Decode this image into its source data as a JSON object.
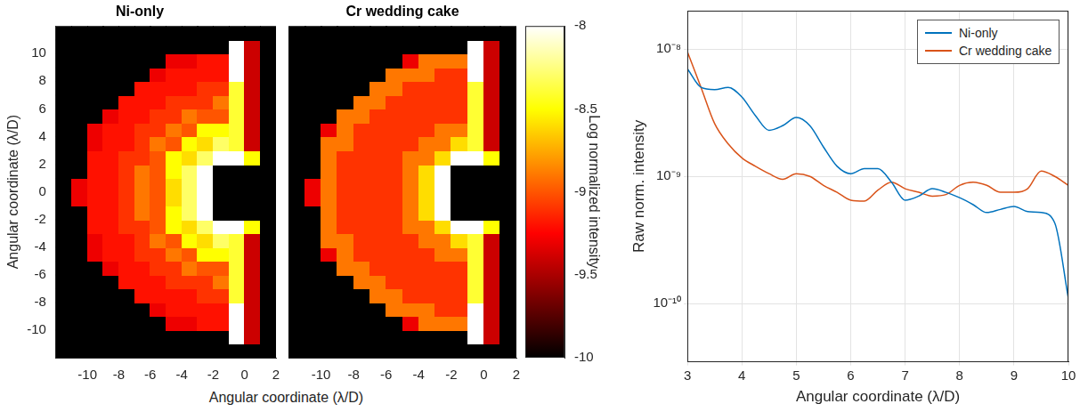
{
  "chart_data": [
    {
      "type": "heatmap",
      "title": "Ni-only",
      "xlabel": "Angular coordinate (λ/D)",
      "ylabel": "Angular coordinate (λ/D)",
      "x": [
        -11.5,
        -10.5,
        -9.5,
        -8.5,
        -7.5,
        -6.5,
        -5.5,
        -4.5,
        -3.5,
        -2.5,
        -1.5,
        -0.5,
        0.5,
        1.5
      ],
      "y": [
        -11.5,
        -10.5,
        -9.5,
        -8.5,
        -7.5,
        -6.5,
        -5.5,
        -4.5,
        -3.5,
        -2.5,
        -1.5,
        -0.5,
        0.5,
        1.5,
        2.5,
        3.5,
        4.5,
        5.5,
        6.5,
        7.5,
        8.5,
        9.5,
        10.5,
        11.5
      ],
      "z": [
        [
          -10,
          -10,
          -10,
          -10,
          -10,
          -10,
          -10,
          -10,
          -10,
          -10,
          -10,
          -10,
          -10,
          -10
        ],
        [
          -10,
          -10,
          -10,
          -10,
          -10,
          -10,
          -10,
          -10,
          -10,
          -10,
          -10,
          -8,
          -9.4,
          -10
        ],
        [
          -10,
          -10,
          -10,
          -10,
          -10,
          -10,
          -10,
          -9.3,
          -9.3,
          -9.2,
          -9.2,
          -8,
          -9.4,
          -10
        ],
        [
          -10,
          -10,
          -10,
          -10,
          -10,
          -10,
          -9.3,
          -9.2,
          -9.2,
          -9.2,
          -9.2,
          -8,
          -9.4,
          -10
        ],
        [
          -10,
          -10,
          -10,
          -10,
          -10,
          -9.2,
          -9.2,
          -9.2,
          -9.2,
          -9.1,
          -9.1,
          -8.4,
          -9.4,
          -10
        ],
        [
          -10,
          -10,
          -10,
          -10,
          -9.2,
          -9.2,
          -9.2,
          -9.1,
          -9.1,
          -9.1,
          -8.9,
          -8.4,
          -9.4,
          -10
        ],
        [
          -10,
          -10,
          -10,
          -9.3,
          -9.2,
          -9.2,
          -9.1,
          -9.1,
          -8.9,
          -9,
          -9,
          -8.4,
          -9.4,
          -10
        ],
        [
          -10,
          -10,
          -9.3,
          -9.2,
          -9.2,
          -9.1,
          -9.1,
          -8.9,
          -9,
          -8.5,
          -8.5,
          -8.4,
          -9.4,
          -10
        ],
        [
          -10,
          -10,
          -9.3,
          -9.2,
          -9.2,
          -9.1,
          -8.9,
          -9,
          -8.5,
          -8.6,
          -8.3,
          -8.4,
          -9.4,
          -10
        ],
        [
          -10,
          -10,
          -9.2,
          -9.2,
          -9.1,
          -9.1,
          -9,
          -8.5,
          -8.6,
          -8.3,
          -8,
          -8,
          -8.5,
          -10
        ],
        [
          -10,
          -10,
          -9.2,
          -9.2,
          -9.1,
          -8.9,
          -9,
          -8.5,
          -8.3,
          -8,
          -10,
          -10,
          -10,
          -10
        ],
        [
          -10,
          -9.3,
          -9.2,
          -9.2,
          -9.1,
          -8.9,
          -9,
          -8.6,
          -8.3,
          -8,
          -10,
          -10,
          -10,
          -10
        ],
        [
          -10,
          -9.3,
          -9.2,
          -9.2,
          -9.1,
          -8.9,
          -9,
          -8.6,
          -8.3,
          -8,
          -10,
          -10,
          -10,
          -10
        ],
        [
          -10,
          -10,
          -9.2,
          -9.2,
          -9.1,
          -8.9,
          -9,
          -8.5,
          -8.3,
          -8,
          -10,
          -10,
          -10,
          -10
        ],
        [
          -10,
          -10,
          -9.2,
          -9.2,
          -9.1,
          -9.1,
          -9,
          -8.5,
          -8.6,
          -8.3,
          -8,
          -8,
          -8.5,
          -10
        ],
        [
          -10,
          -10,
          -9.3,
          -9.2,
          -9.2,
          -9.1,
          -8.9,
          -9,
          -8.5,
          -8.6,
          -8.3,
          -8.4,
          -9.4,
          -10
        ],
        [
          -10,
          -10,
          -9.3,
          -9.2,
          -9.2,
          -9.1,
          -9.1,
          -8.9,
          -9,
          -8.5,
          -8.5,
          -8.4,
          -9.4,
          -10
        ],
        [
          -10,
          -10,
          -10,
          -9.3,
          -9.2,
          -9.2,
          -9.1,
          -9.1,
          -8.9,
          -9,
          -9,
          -8.4,
          -9.4,
          -10
        ],
        [
          -10,
          -10,
          -10,
          -10,
          -9.2,
          -9.2,
          -9.2,
          -9.1,
          -9.1,
          -9.1,
          -8.9,
          -8.4,
          -9.4,
          -10
        ],
        [
          -10,
          -10,
          -10,
          -10,
          -10,
          -9.2,
          -9.2,
          -9.2,
          -9.2,
          -9.1,
          -9.1,
          -8.4,
          -9.4,
          -10
        ],
        [
          -10,
          -10,
          -10,
          -10,
          -10,
          -10,
          -9.3,
          -9.2,
          -9.2,
          -9.2,
          -9.2,
          -8,
          -9.4,
          -10
        ],
        [
          -10,
          -10,
          -10,
          -10,
          -10,
          -10,
          -10,
          -9.3,
          -9.3,
          -9.2,
          -9.2,
          -8,
          -9.4,
          -10
        ],
        [
          -10,
          -10,
          -10,
          -10,
          -10,
          -10,
          -10,
          -10,
          -10,
          -10,
          -10,
          -8,
          -9.4,
          -10
        ],
        [
          -10,
          -10,
          -10,
          -10,
          -10,
          -10,
          -10,
          -10,
          -10,
          -10,
          -10,
          -10,
          -10,
          -10
        ]
      ],
      "xlim": [
        -12,
        2
      ],
      "ylim": [
        -12,
        12
      ],
      "xticks": [
        -10,
        -8,
        -6,
        -4,
        -2,
        0,
        2
      ],
      "yticks": [
        -10,
        -8,
        -6,
        -4,
        -2,
        0,
        2,
        4,
        6,
        8,
        10
      ],
      "grid": false
    },
    {
      "type": "heatmap",
      "title": "Cr wedding cake",
      "x": [
        -11.5,
        -10.5,
        -9.5,
        -8.5,
        -7.5,
        -6.5,
        -5.5,
        -4.5,
        -3.5,
        -2.5,
        -1.5,
        -0.5,
        0.5,
        1.5
      ],
      "y": [
        -11.5,
        -10.5,
        -9.5,
        -8.5,
        -7.5,
        -6.5,
        -5.5,
        -4.5,
        -3.5,
        -2.5,
        -1.5,
        -0.5,
        0.5,
        1.5,
        2.5,
        3.5,
        4.5,
        5.5,
        6.5,
        7.5,
        8.5,
        9.5,
        10.5,
        11.5
      ],
      "z": [
        [
          -10,
          -10,
          -10,
          -10,
          -10,
          -10,
          -10,
          -10,
          -10,
          -10,
          -10,
          -10,
          -10,
          -10
        ],
        [
          -10,
          -10,
          -10,
          -10,
          -10,
          -10,
          -10,
          -10,
          -10,
          -10,
          -10,
          -8,
          -9.4,
          -10
        ],
        [
          -10,
          -10,
          -10,
          -10,
          -10,
          -10,
          -10,
          -9.3,
          -8.9,
          -8.9,
          -8.9,
          -8,
          -9.4,
          -10
        ],
        [
          -10,
          -10,
          -10,
          -10,
          -10,
          -10,
          -8.9,
          -8.9,
          -8.9,
          -9.1,
          -9.1,
          -8,
          -9.4,
          -10
        ],
        [
          -10,
          -10,
          -10,
          -10,
          -10,
          -8.9,
          -8.9,
          -9.1,
          -9.1,
          -9.1,
          -9.1,
          -8.4,
          -9.4,
          -10
        ],
        [
          -10,
          -10,
          -10,
          -10,
          -8.9,
          -8.9,
          -9.1,
          -9.1,
          -9.1,
          -9.1,
          -9.1,
          -8.4,
          -9.4,
          -10
        ],
        [
          -10,
          -10,
          -10,
          -8.9,
          -8.9,
          -9.1,
          -9.1,
          -9.1,
          -9.1,
          -9.1,
          -9.1,
          -8.4,
          -9.4,
          -10
        ],
        [
          -10,
          -10,
          -9.3,
          -8.9,
          -9.1,
          -9.1,
          -9.1,
          -9.1,
          -9.1,
          -8.9,
          -8.9,
          -8.4,
          -9.4,
          -10
        ],
        [
          -10,
          -10,
          -8.9,
          -8.9,
          -9.1,
          -9.1,
          -9.1,
          -9.1,
          -8.9,
          -8.9,
          -8.6,
          -8.4,
          -9.4,
          -10
        ],
        [
          -10,
          -10,
          -8.9,
          -9.1,
          -9.1,
          -9.1,
          -9.1,
          -8.9,
          -8.9,
          -8.6,
          -8,
          -8,
          -8.5,
          -10
        ],
        [
          -10,
          -10,
          -8.9,
          -9.1,
          -9.1,
          -9.1,
          -9.1,
          -8.9,
          -8.6,
          -8,
          -10,
          -10,
          -10,
          -10
        ],
        [
          -10,
          -9.3,
          -8.9,
          -9.1,
          -9.1,
          -9.1,
          -9.1,
          -8.9,
          -8.6,
          -8,
          -10,
          -10,
          -10,
          -10
        ],
        [
          -10,
          -9.3,
          -8.9,
          -9.1,
          -9.1,
          -9.1,
          -9.1,
          -8.9,
          -8.6,
          -8,
          -10,
          -10,
          -10,
          -10
        ],
        [
          -10,
          -10,
          -8.9,
          -9.1,
          -9.1,
          -9.1,
          -9.1,
          -8.9,
          -8.6,
          -8,
          -10,
          -10,
          -10,
          -10
        ],
        [
          -10,
          -10,
          -8.9,
          -9.1,
          -9.1,
          -9.1,
          -9.1,
          -8.9,
          -8.9,
          -8.6,
          -8,
          -8,
          -8.5,
          -10
        ],
        [
          -10,
          -10,
          -8.9,
          -8.9,
          -9.1,
          -9.1,
          -9.1,
          -9.1,
          -8.9,
          -8.9,
          -8.6,
          -8.4,
          -9.4,
          -10
        ],
        [
          -10,
          -10,
          -9.3,
          -8.9,
          -9.1,
          -9.1,
          -9.1,
          -9.1,
          -9.1,
          -8.9,
          -8.9,
          -8.4,
          -9.4,
          -10
        ],
        [
          -10,
          -10,
          -10,
          -8.9,
          -8.9,
          -9.1,
          -9.1,
          -9.1,
          -9.1,
          -9.1,
          -9.1,
          -8.4,
          -9.4,
          -10
        ],
        [
          -10,
          -10,
          -10,
          -10,
          -8.9,
          -8.9,
          -9.1,
          -9.1,
          -9.1,
          -9.1,
          -9.1,
          -8.4,
          -9.4,
          -10
        ],
        [
          -10,
          -10,
          -10,
          -10,
          -10,
          -8.9,
          -8.9,
          -9.1,
          -9.1,
          -9.1,
          -9.1,
          -8.4,
          -9.4,
          -10
        ],
        [
          -10,
          -10,
          -10,
          -10,
          -10,
          -10,
          -8.9,
          -8.9,
          -8.9,
          -9.1,
          -9.1,
          -8,
          -9.4,
          -10
        ],
        [
          -10,
          -10,
          -10,
          -10,
          -10,
          -10,
          -10,
          -9.3,
          -8.9,
          -8.9,
          -8.9,
          -8,
          -9.4,
          -10
        ],
        [
          -10,
          -10,
          -10,
          -10,
          -10,
          -10,
          -10,
          -10,
          -10,
          -10,
          -10,
          -8,
          -9.4,
          -10
        ],
        [
          -10,
          -10,
          -10,
          -10,
          -10,
          -10,
          -10,
          -10,
          -10,
          -10,
          -10,
          -10,
          -10,
          -10
        ]
      ],
      "xlim": [
        -12,
        2
      ],
      "ylim": [
        -12,
        12
      ],
      "xticks": [
        -10,
        -8,
        -6,
        -4,
        -2,
        0,
        2
      ],
      "yticks": [
        -10,
        -8,
        -6,
        -4,
        -2,
        0,
        2,
        4,
        6,
        8,
        10
      ],
      "grid": false,
      "tick_labels": "x",
      "colorbar": {
        "label": "Log normalized intensity",
        "range": [
          -10,
          -8
        ],
        "ticks": [
          -10,
          -9.5,
          -9,
          -8.5,
          -8
        ]
      }
    },
    {
      "type": "line",
      "xlabel": "Angular coordinate (λ/D)",
      "ylabel": "Raw norm. intensity",
      "x": [
        3,
        3.25,
        3.5,
        3.75,
        4,
        4.25,
        4.5,
        4.75,
        5,
        5.25,
        5.5,
        5.75,
        6,
        6.25,
        6.5,
        6.75,
        7,
        7.25,
        7.5,
        7.75,
        8,
        8.25,
        8.5,
        8.75,
        9,
        9.25,
        9.5,
        9.75,
        10
      ],
      "series": [
        {
          "name": "Ni-only",
          "color": "#0072bd",
          "values": [
            7e-09,
            5e-09,
            4.8e-09,
            5e-09,
            4.2e-09,
            3e-09,
            2.3e-09,
            2.5e-09,
            2.9e-09,
            2.5e-09,
            1.7e-09,
            1.2e-09,
            1.05e-09,
            1.15e-09,
            1.15e-09,
            9e-10,
            6.5e-10,
            7e-10,
            8e-10,
            7.5e-10,
            6.8e-10,
            6e-10,
            5.2e-10,
            5.5e-10,
            5.8e-10,
            5.3e-10,
            5.2e-10,
            4.3e-10,
            1.1e-10
          ]
        },
        {
          "name": "Cr wedding cake",
          "color": "#d95319",
          "values": [
            9.5e-09,
            5e-09,
            2.6e-09,
            1.8e-09,
            1.4e-09,
            1.2e-09,
            1.05e-09,
            9.5e-10,
            1.05e-09,
            1e-09,
            8.5e-10,
            7.5e-10,
            6.5e-10,
            6.4e-10,
            7.8e-10,
            9e-10,
            8e-10,
            7.5e-10,
            7e-10,
            7.2e-10,
            8.5e-10,
            9e-10,
            8.5e-10,
            7.5e-10,
            7.5e-10,
            8e-10,
            1.1e-09,
            1e-09,
            8.5e-10
          ]
        }
      ],
      "xlim": [
        3,
        10
      ],
      "ylim": [
        3.5e-11,
        2e-08
      ],
      "xticks": [
        3,
        4,
        5,
        6,
        7,
        8,
        9,
        10
      ],
      "yticks": [
        {
          "value": 1e-10,
          "label": "10⁻¹⁰"
        },
        {
          "value": 1e-09,
          "label": "10⁻⁹"
        },
        {
          "value": 1e-08,
          "label": "10⁻⁸"
        }
      ],
      "log": "y",
      "grid": true,
      "legend": "upper right"
    }
  ]
}
